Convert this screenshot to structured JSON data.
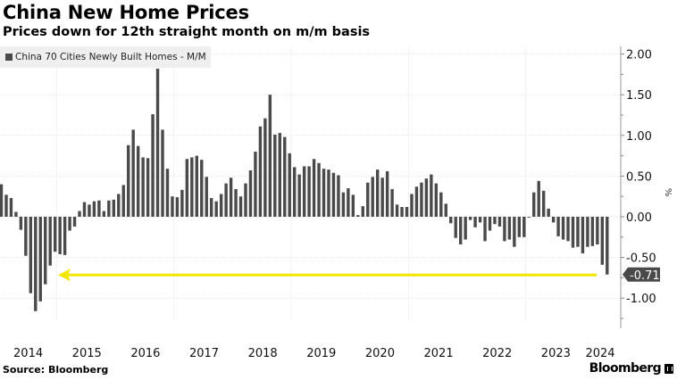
{
  "header": {
    "title": "China New Home Prices",
    "subtitle": "Prices down for 12th straight month on m/m basis"
  },
  "legend": {
    "label": "China 70 Cities Newly Built Homes - M/M"
  },
  "footer": {
    "source": "Source: Bloomberg",
    "brand": "Bloomberg",
    "brand_icon": "bloomberg-terminal-icon"
  },
  "colors": {
    "bar": "#4a4a4a",
    "arrow": "#f2e600",
    "tag": "#4a4a4a",
    "grid": "#e6e6e6"
  },
  "chart_data": {
    "type": "bar",
    "title": "China New Home Prices",
    "subtitle": "Prices down for 12th straight month on m/m basis",
    "series_name": "China 70 Cities Newly Built Homes - M/M",
    "xlabel": "",
    "ylabel": "%",
    "ylim": [
      -1.35,
      2.05
    ],
    "yticks": [
      2.0,
      1.5,
      1.0,
      0.5,
      0.0,
      -0.5,
      -1.0
    ],
    "ytick_labels": [
      "2.00",
      "1.50",
      "1.00",
      "0.50",
      "0.00",
      "-0.50",
      "-1.00"
    ],
    "y_axis_side": "right",
    "x_start": "2014-01",
    "x_end": "2024-05",
    "frequency": "monthly",
    "xtick_labels": [
      "2014",
      "2015",
      "2016",
      "2017",
      "2018",
      "2019",
      "2020",
      "2021",
      "2022",
      "2023",
      "2024"
    ],
    "grid": true,
    "legend_position": "top-left",
    "last_value_label": "-0.71",
    "annotation": "yellow arrow pointing left from latest value to 2014 low",
    "values": [
      0.4,
      0.27,
      0.23,
      0.06,
      -0.16,
      -0.48,
      -0.94,
      -1.16,
      -1.04,
      -0.83,
      -0.6,
      -0.43,
      -0.46,
      -0.47,
      -0.17,
      -0.12,
      0.07,
      0.18,
      0.15,
      0.19,
      0.2,
      0.07,
      0.2,
      0.21,
      0.28,
      0.39,
      0.88,
      1.07,
      0.87,
      0.73,
      0.72,
      1.26,
      1.82,
      1.07,
      0.59,
      0.25,
      0.24,
      0.33,
      0.71,
      0.73,
      0.75,
      0.7,
      0.49,
      0.23,
      0.19,
      0.28,
      0.41,
      0.48,
      0.34,
      0.25,
      0.41,
      0.57,
      0.8,
      1.11,
      1.21,
      1.5,
      1.01,
      1.03,
      0.98,
      0.78,
      0.61,
      0.52,
      0.62,
      0.62,
      0.71,
      0.66,
      0.59,
      0.58,
      0.54,
      0.51,
      0.3,
      0.35,
      0.27,
      0.02,
      0.13,
      0.42,
      0.49,
      0.58,
      0.48,
      0.56,
      0.34,
      0.15,
      0.12,
      0.12,
      0.28,
      0.37,
      0.42,
      0.47,
      0.52,
      0.41,
      0.3,
      0.16,
      -0.08,
      -0.26,
      -0.34,
      -0.28,
      -0.04,
      -0.13,
      -0.07,
      -0.3,
      -0.17,
      -0.09,
      -0.12,
      -0.3,
      -0.28,
      -0.37,
      -0.25,
      -0.25,
      -0.01,
      0.3,
      0.44,
      0.32,
      0.1,
      -0.07,
      -0.24,
      -0.28,
      -0.3,
      -0.38,
      -0.37,
      -0.45,
      -0.37,
      -0.36,
      -0.34,
      -0.59,
      -0.71
    ]
  }
}
